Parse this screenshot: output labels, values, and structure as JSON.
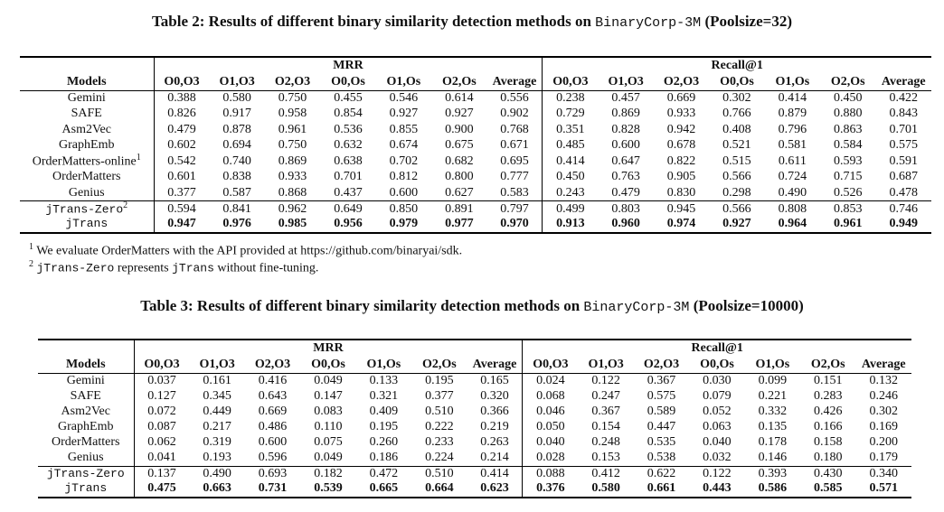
{
  "tables": [
    {
      "caption": [
        "Table 2: Results of different binary similarity detection methods on",
        "BinaryCorp-3M",
        "(Poolsize=32)"
      ],
      "groups": [
        "MRR",
        "Recall@1"
      ],
      "columns": [
        "Models",
        "O0,O3",
        "O1,O3",
        "O2,O3",
        "O0,Os",
        "O1,Os",
        "O2,Os",
        "Average",
        "O0,O3",
        "O1,O3",
        "O2,O3",
        "O0,Os",
        "O1,Os",
        "O2,Os",
        "Average"
      ],
      "rows": [
        {
          "model": "Gemini",
          "cells": [
            "0.388",
            "0.580",
            "0.750",
            "0.455",
            "0.546",
            "0.614",
            "0.556",
            "0.238",
            "0.457",
            "0.669",
            "0.302",
            "0.414",
            "0.450",
            "0.422"
          ]
        },
        {
          "model": "SAFE",
          "cells": [
            "0.826",
            "0.917",
            "0.958",
            "0.854",
            "0.927",
            "0.927",
            "0.902",
            "0.729",
            "0.869",
            "0.933",
            "0.766",
            "0.879",
            "0.880",
            "0.843"
          ]
        },
        {
          "model": "Asm2Vec",
          "cells": [
            "0.479",
            "0.878",
            "0.961",
            "0.536",
            "0.855",
            "0.900",
            "0.768",
            "0.351",
            "0.828",
            "0.942",
            "0.408",
            "0.796",
            "0.863",
            "0.701"
          ]
        },
        {
          "model": "GraphEmb",
          "cells": [
            "0.602",
            "0.694",
            "0.750",
            "0.632",
            "0.674",
            "0.675",
            "0.671",
            "0.485",
            "0.600",
            "0.678",
            "0.521",
            "0.581",
            "0.584",
            "0.575"
          ]
        },
        {
          "model": "OrderMatters-online",
          "note": "1",
          "cells": [
            "0.542",
            "0.740",
            "0.869",
            "0.638",
            "0.702",
            "0.682",
            "0.695",
            "0.414",
            "0.647",
            "0.822",
            "0.515",
            "0.611",
            "0.593",
            "0.591"
          ]
        },
        {
          "model": "OrderMatters",
          "cells": [
            "0.601",
            "0.838",
            "0.933",
            "0.701",
            "0.812",
            "0.800",
            "0.777",
            "0.450",
            "0.763",
            "0.905",
            "0.566",
            "0.724",
            "0.715",
            "0.687"
          ]
        },
        {
          "model": "Genius",
          "cells": [
            "0.377",
            "0.587",
            "0.868",
            "0.437",
            "0.600",
            "0.627",
            "0.583",
            "0.243",
            "0.479",
            "0.830",
            "0.298",
            "0.490",
            "0.526",
            "0.478"
          ]
        }
      ],
      "ours": [
        {
          "model": "jTrans-Zero",
          "note": "2",
          "cells": [
            "0.594",
            "0.841",
            "0.962",
            "0.649",
            "0.850",
            "0.891",
            "0.797",
            "0.499",
            "0.803",
            "0.945",
            "0.566",
            "0.808",
            "0.853",
            "0.746"
          ]
        },
        {
          "model": "jTrans",
          "cells": [
            "0.947",
            "0.976",
            "0.985",
            "0.956",
            "0.979",
            "0.977",
            "0.970",
            "0.913",
            "0.960",
            "0.974",
            "0.927",
            "0.964",
            "0.961",
            "0.949"
          ]
        }
      ],
      "footnotes": [
        {
          "marker": "1",
          "parts": [
            "We evaluate OrderMatters with the API provided at https://github.com/binaryai/sdk."
          ]
        },
        {
          "marker": "2",
          "parts": [
            "jTrans-Zero",
            "represents",
            "jTrans",
            "without fine-tuning."
          ]
        }
      ]
    },
    {
      "caption": [
        "Table 3: Results of different binary similarity detection methods on",
        "BinaryCorp-3M",
        "(Poolsize=10000)"
      ],
      "groups": [
        "MRR",
        "Recall@1"
      ],
      "columns": [
        "Models",
        "O0,O3",
        "O1,O3",
        "O2,O3",
        "O0,Os",
        "O1,Os",
        "O2,Os",
        "Average",
        "O0,O3",
        "O1,O3",
        "O2,O3",
        "O0,Os",
        "O1,Os",
        "O2,Os",
        "Average"
      ],
      "rows": [
        {
          "model": "Gemini",
          "cells": [
            "0.037",
            "0.161",
            "0.416",
            "0.049",
            "0.133",
            "0.195",
            "0.165",
            "0.024",
            "0.122",
            "0.367",
            "0.030",
            "0.099",
            "0.151",
            "0.132"
          ]
        },
        {
          "model": "SAFE",
          "cells": [
            "0.127",
            "0.345",
            "0.643",
            "0.147",
            "0.321",
            "0.377",
            "0.320",
            "0.068",
            "0.247",
            "0.575",
            "0.079",
            "0.221",
            "0.283",
            "0.246"
          ]
        },
        {
          "model": "Asm2Vec",
          "cells": [
            "0.072",
            "0.449",
            "0.669",
            "0.083",
            "0.409",
            "0.510",
            "0.366",
            "0.046",
            "0.367",
            "0.589",
            "0.052",
            "0.332",
            "0.426",
            "0.302"
          ]
        },
        {
          "model": "GraphEmb",
          "cells": [
            "0.087",
            "0.217",
            "0.486",
            "0.110",
            "0.195",
            "0.222",
            "0.219",
            "0.050",
            "0.154",
            "0.447",
            "0.063",
            "0.135",
            "0.166",
            "0.169"
          ]
        },
        {
          "model": "OrderMatters",
          "cells": [
            "0.062",
            "0.319",
            "0.600",
            "0.075",
            "0.260",
            "0.233",
            "0.263",
            "0.040",
            "0.248",
            "0.535",
            "0.040",
            "0.178",
            "0.158",
            "0.200"
          ]
        },
        {
          "model": "Genius",
          "cells": [
            "0.041",
            "0.193",
            "0.596",
            "0.049",
            "0.186",
            "0.224",
            "0.214",
            "0.028",
            "0.153",
            "0.538",
            "0.032",
            "0.146",
            "0.180",
            "0.179"
          ]
        }
      ],
      "ours": [
        {
          "model": "jTrans-Zero",
          "cells": [
            "0.137",
            "0.490",
            "0.693",
            "0.182",
            "0.472",
            "0.510",
            "0.414",
            "0.088",
            "0.412",
            "0.622",
            "0.122",
            "0.393",
            "0.430",
            "0.340"
          ]
        },
        {
          "model": "jTrans",
          "cells": [
            "0.475",
            "0.663",
            "0.731",
            "0.539",
            "0.665",
            "0.664",
            "0.623",
            "0.376",
            "0.580",
            "0.661",
            "0.443",
            "0.586",
            "0.585",
            "0.571"
          ]
        }
      ]
    }
  ]
}
